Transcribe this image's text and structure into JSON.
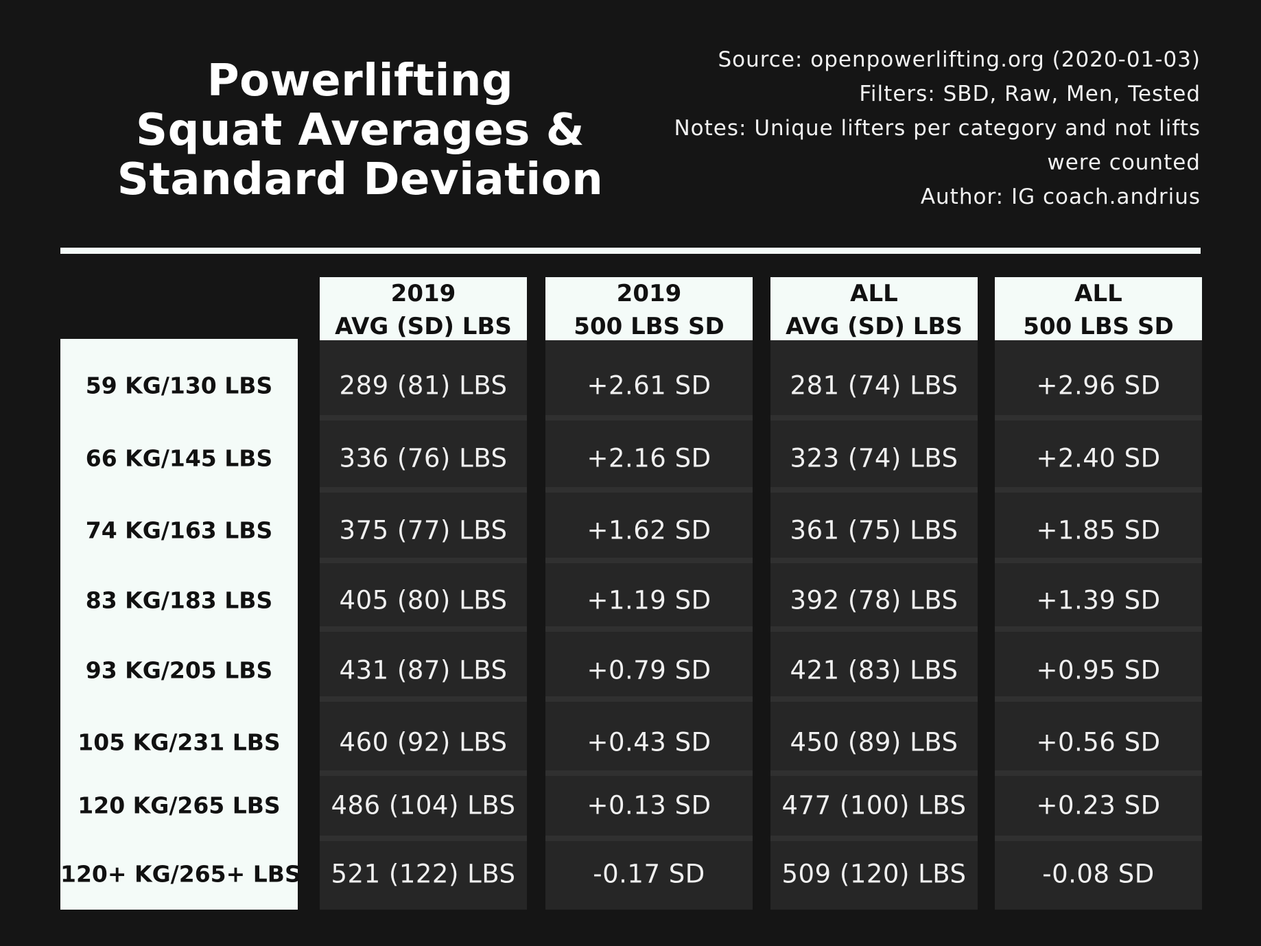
{
  "header": {
    "title_lines": [
      "Powerlifting",
      "Squat Averages &",
      "Standard Deviation"
    ],
    "meta_lines": [
      "Source: openpowerlifting.org (2020-01-03)",
      "Filters: SBD, Raw, Men, Tested",
      "Notes: Unique lifters per category and not lifts",
      "were counted",
      "Author: IG coach.andrius"
    ]
  },
  "chart_data": {
    "type": "table",
    "columns": [
      {
        "line1": "2019",
        "line2": "AVG (SD) LBS"
      },
      {
        "line1": "2019",
        "line2": "500 LBS SD"
      },
      {
        "line1": "ALL",
        "line2": "AVG (SD) LBS"
      },
      {
        "line1": "ALL",
        "line2": "500 LBS SD"
      }
    ],
    "rows": [
      {
        "label": "59 KG/130 LBS",
        "cells": [
          "289 (81) LBS",
          "+2.61 SD",
          "281 (74) LBS",
          "+2.96 SD"
        ]
      },
      {
        "label": "66 KG/145 LBS",
        "cells": [
          "336 (76) LBS",
          "+2.16 SD",
          "323 (74) LBS",
          "+2.40 SD"
        ]
      },
      {
        "label": "74 KG/163 LBS",
        "cells": [
          "375 (77) LBS",
          "+1.62 SD",
          "361 (75) LBS",
          "+1.85 SD"
        ]
      },
      {
        "label": "83 KG/183 LBS",
        "cells": [
          "405 (80) LBS",
          "+1.19 SD",
          "392 (78) LBS",
          "+1.39 SD"
        ]
      },
      {
        "label": "93 KG/205 LBS",
        "cells": [
          "431 (87) LBS",
          "+0.79 SD",
          "421 (83) LBS",
          "+0.95 SD"
        ]
      },
      {
        "label": "105 KG/231 LBS",
        "cells": [
          "460 (92) LBS",
          "+0.43 SD",
          "450 (89) LBS",
          "+0.56 SD"
        ]
      },
      {
        "label": "120 KG/265 LBS",
        "cells": [
          "486 (104) LBS",
          "+0.13 SD",
          "477 (100) LBS",
          "+0.23 SD"
        ]
      },
      {
        "label": "120+ KG/265+ LBS",
        "cells": [
          "521 (122) LBS",
          "-0.17 SD",
          "509 (120) LBS",
          "-0.08 SD"
        ]
      }
    ]
  },
  "colors": {
    "background": "#151515",
    "panel_light": "#f4fbf8",
    "cell_dark": "#262626"
  }
}
